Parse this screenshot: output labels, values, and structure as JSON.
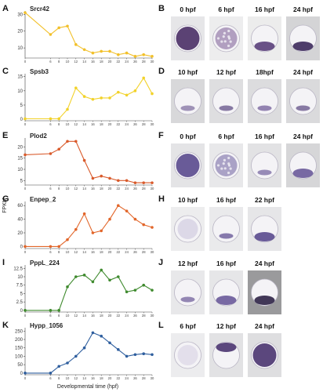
{
  "axis": {
    "ylabel": "FPKM",
    "xlabel": "Developmental time (hpf)",
    "x_ticks": [
      0,
      6,
      8,
      10,
      12,
      14,
      16,
      18,
      20,
      22,
      24,
      26,
      28,
      30
    ]
  },
  "chart_data": [
    {
      "type": "line",
      "panel": "A",
      "title": "Srcr42",
      "color": "#f2c02a",
      "x": [
        0,
        6,
        8,
        10,
        12,
        14,
        16,
        18,
        20,
        22,
        24,
        26,
        28,
        30
      ],
      "y": [
        31,
        18,
        22,
        23,
        12,
        9,
        7,
        8,
        8,
        6,
        7,
        5,
        6,
        5
      ],
      "yticks": [
        10,
        20,
        30
      ],
      "ylim": [
        4,
        32
      ]
    },
    {
      "type": "line",
      "panel": "C",
      "title": "Spsb3",
      "color": "#f2d22a",
      "x": [
        0,
        6,
        8,
        10,
        12,
        14,
        16,
        18,
        20,
        22,
        24,
        26,
        28,
        30
      ],
      "y": [
        0.2,
        0.2,
        0.2,
        3.5,
        11,
        8,
        7,
        7.5,
        7.5,
        9.5,
        8.5,
        10,
        14.5,
        9
      ],
      "yticks": [
        0,
        5,
        10,
        15
      ],
      "ylim": [
        -0.5,
        16
      ]
    },
    {
      "type": "line",
      "panel": "E",
      "title": "Plod2",
      "color": "#d95a2b",
      "x": [
        0,
        6,
        8,
        10,
        12,
        14,
        16,
        18,
        20,
        22,
        24,
        26,
        28,
        30
      ],
      "y": [
        16.5,
        17,
        19,
        22.5,
        22.5,
        14,
        6,
        7,
        6,
        5,
        5,
        4,
        4,
        4
      ],
      "yticks": [
        5,
        10,
        15,
        20
      ],
      "ylim": [
        3,
        24
      ]
    },
    {
      "type": "line",
      "panel": "G",
      "title": "Enpep_2",
      "color": "#e2662a",
      "x": [
        0,
        6,
        8,
        10,
        12,
        14,
        16,
        18,
        20,
        22,
        24,
        26,
        28,
        30
      ],
      "y": [
        0,
        0,
        0,
        10,
        25,
        48,
        20,
        23,
        40,
        60,
        52,
        40,
        32,
        28
      ],
      "yticks": [
        0,
        20,
        40,
        60
      ],
      "ylim": [
        -3,
        66
      ]
    },
    {
      "type": "line",
      "panel": "I",
      "title": "PppL_224",
      "color": "#3f8a2e",
      "x": [
        0,
        6,
        8,
        10,
        12,
        14,
        16,
        18,
        20,
        22,
        24,
        26,
        28,
        30
      ],
      "y": [
        0,
        0,
        0,
        7,
        10,
        10.5,
        8.5,
        12,
        9,
        10,
        5.5,
        6,
        7.5,
        6
      ],
      "yticks": [
        0,
        2.5,
        5,
        7.5,
        10,
        12.5
      ],
      "ylim": [
        -0.5,
        13.5
      ]
    },
    {
      "type": "line",
      "panel": "K",
      "title": "Hypp_1056",
      "color": "#2e5e9e",
      "x": [
        0,
        6,
        8,
        10,
        12,
        14,
        16,
        18,
        20,
        22,
        24,
        26,
        28,
        30
      ],
      "y": [
        0,
        0,
        40,
        60,
        100,
        150,
        240,
        220,
        180,
        140,
        100,
        110,
        115,
        110
      ],
      "yticks": [
        0,
        50,
        100,
        150,
        200,
        250
      ],
      "ylim": [
        -10,
        270
      ]
    }
  ],
  "image_rows": [
    {
      "panel": "B",
      "labels": [
        "0 hpf",
        "6 hpf",
        "16 hpf",
        "24 hpf"
      ]
    },
    {
      "panel": "D",
      "labels": [
        "10 hpf",
        "12 hpf",
        "18hpf",
        "24 hpf"
      ]
    },
    {
      "panel": "F",
      "labels": [
        "0 hpf",
        "6 hpf",
        "16 hpf",
        "24 hpf"
      ]
    },
    {
      "panel": "H",
      "labels": [
        "10 hpf",
        "16 hpf",
        "22 hpf"
      ]
    },
    {
      "panel": "J",
      "labels": [
        "12 hpf",
        "16 hpf",
        "24 hpf"
      ]
    },
    {
      "panel": "L",
      "labels": [
        "6 hpf",
        "12 hpf",
        "24 hpf"
      ]
    }
  ]
}
